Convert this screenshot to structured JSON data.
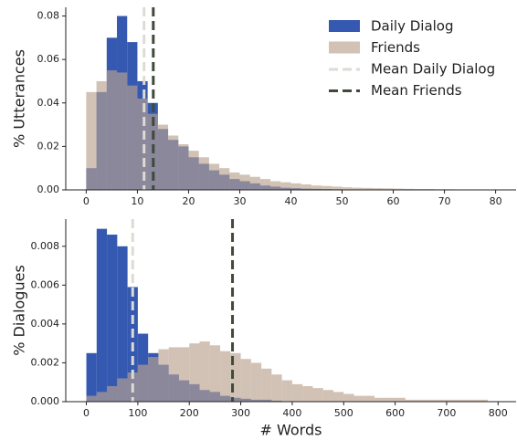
{
  "chart_data": [
    {
      "type": "histogram",
      "ylabel": "% Utterances",
      "bins": [
        0,
        2,
        4,
        6,
        8,
        10,
        12,
        14,
        16,
        18,
        20,
        22,
        24,
        26,
        28,
        30,
        32,
        34,
        36,
        38,
        40,
        42,
        44,
        46,
        48,
        50,
        52,
        54,
        56,
        58,
        60,
        62,
        64,
        66,
        68,
        70,
        72,
        74,
        76,
        78,
        80
      ],
      "series": [
        {
          "name": "Daily Dialog",
          "color": "#1f47a8",
          "values": [
            0.01,
            0.045,
            0.07,
            0.08,
            0.068,
            0.05,
            0.04,
            0.028,
            0.023,
            0.02,
            0.015,
            0.012,
            0.009,
            0.007,
            0.005,
            0.004,
            0.003,
            0.002,
            0.0015,
            0.001,
            0.0008,
            0.0006,
            0.0005,
            0.0004,
            0.0003,
            0.0002,
            0.0002,
            0.0001,
            0.0001,
            0.0001,
            0,
            0,
            0,
            0,
            0,
            0,
            0,
            0,
            0,
            0
          ]
        },
        {
          "name": "Friends",
          "color": "#b8a28e",
          "values": [
            0.045,
            0.05,
            0.055,
            0.054,
            0.048,
            0.042,
            0.035,
            0.03,
            0.025,
            0.021,
            0.018,
            0.015,
            0.012,
            0.01,
            0.008,
            0.007,
            0.006,
            0.005,
            0.004,
            0.0035,
            0.003,
            0.0025,
            0.002,
            0.0018,
            0.0015,
            0.0012,
            0.001,
            0.0009,
            0.0008,
            0.0007,
            0.0006,
            0.0005,
            0.0004,
            0.0004,
            0.0003,
            0.0003,
            0.0002,
            0.0002,
            0.0002,
            0.0001
          ]
        }
      ],
      "vlines": [
        {
          "name": "Mean Daily Dialog",
          "x": 11.3,
          "color": "#dcdcd4"
        },
        {
          "name": "Mean Friends",
          "x": 13.1,
          "color": "#3f4a3b"
        }
      ],
      "xlim": [
        -4,
        84
      ],
      "ylim": [
        0,
        0.084
      ],
      "xticks": [
        0,
        10,
        20,
        30,
        40,
        50,
        60,
        70,
        80
      ],
      "yticks": [
        {
          "value": 0,
          "label": "0.00"
        },
        0.02,
        0.04,
        0.06,
        0.08
      ],
      "legend": "upper right"
    },
    {
      "type": "histogram",
      "ylabel": "% Dialogues",
      "xlabel": "# Words",
      "bins": [
        0,
        20,
        40,
        60,
        80,
        100,
        120,
        140,
        160,
        180,
        200,
        220,
        240,
        260,
        280,
        300,
        320,
        340,
        360,
        380,
        400,
        420,
        440,
        460,
        480,
        500,
        520,
        540,
        560,
        580,
        600,
        620,
        640,
        660,
        680,
        700,
        720,
        740,
        760,
        780,
        800
      ],
      "series": [
        {
          "color": "#1f47a8",
          "values": [
            0.0025,
            0.0089,
            0.0086,
            0.008,
            0.0059,
            0.0035,
            0.0025,
            0.0019,
            0.0014,
            0.0011,
            0.0009,
            0.0006,
            0.0005,
            0.0003,
            0.0002,
            0.00015,
            0.0001,
            0.0001,
            5e-05,
            0,
            0,
            0,
            0,
            0,
            0,
            0,
            0,
            0,
            0,
            0,
            0,
            0,
            0,
            0,
            0,
            0,
            0,
            0,
            0,
            0
          ]
        },
        {
          "color": "#b8a28e",
          "values": [
            0.0003,
            0.0005,
            0.0008,
            0.0012,
            0.0015,
            0.0019,
            0.0023,
            0.0027,
            0.0028,
            0.0028,
            0.003,
            0.0031,
            0.0029,
            0.0026,
            0.0025,
            0.0022,
            0.002,
            0.0017,
            0.0014,
            0.0011,
            0.0009,
            0.0008,
            0.0007,
            0.0006,
            0.0005,
            0.0004,
            0.0003,
            0.0003,
            0.0002,
            0.0002,
            0.0002,
            0.0001,
            0.0001,
            0.0001,
            0.0001,
            0.0001,
            0.0001,
            0.0001,
            0.0001,
            0
          ]
        }
      ],
      "vlines": [
        {
          "x": 90,
          "color": "#dcdcd4"
        },
        {
          "x": 284,
          "color": "#3f4a3b"
        }
      ],
      "xlim": [
        -40,
        835
      ],
      "ylim": [
        0,
        0.0094
      ],
      "xticks": [
        0,
        100,
        200,
        300,
        400,
        500,
        600,
        700,
        800
      ],
      "yticks": [
        {
          "value": 0,
          "label": "0.000"
        },
        0.002,
        0.004,
        0.006,
        0.008
      ]
    }
  ]
}
